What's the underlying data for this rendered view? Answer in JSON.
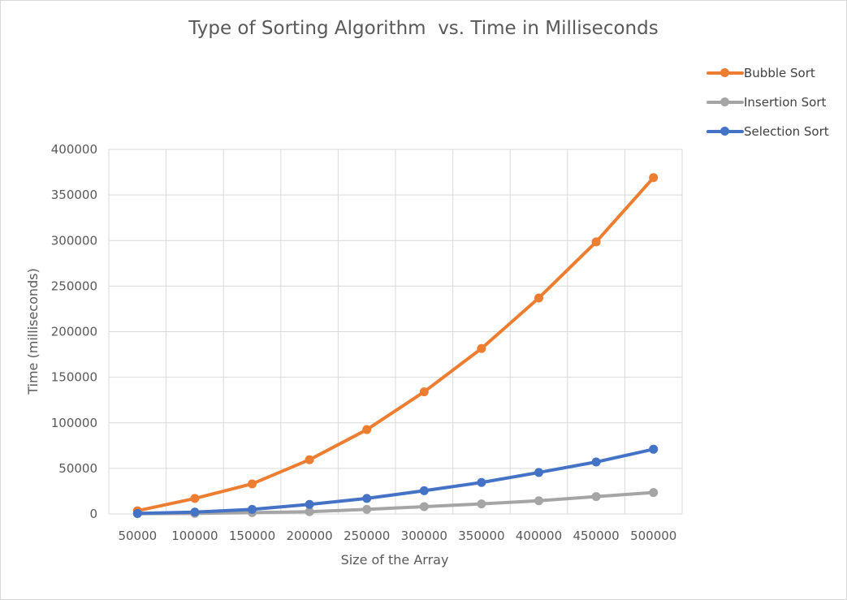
{
  "chart_data": {
    "type": "line",
    "title": "Type of Sorting Algorithm  vs. Time in Milliseconds",
    "xlabel": "Size of the  Array",
    "ylabel": "Time (milliseconds)",
    "categories": [
      "50000",
      "100000",
      "150000",
      "200000",
      "250000",
      "300000",
      "350000",
      "400000",
      "450000",
      "500000"
    ],
    "ylim": [
      0,
      400000
    ],
    "yticks": [
      "0",
      "50000",
      "100000",
      "150000",
      "200000",
      "250000",
      "300000",
      "350000",
      "400000"
    ],
    "grid": true,
    "legend_position": "top-right",
    "series": [
      {
        "name": "Bubble Sort",
        "color": "#ed7d31",
        "values": [
          3500,
          17000,
          33000,
          59500,
          92500,
          134000,
          181500,
          237000,
          298500,
          369000
        ]
      },
      {
        "name": "Insertion Sort",
        "color": "#a5a5a5",
        "values": [
          300,
          600,
          1500,
          2500,
          5000,
          8000,
          11000,
          14500,
          19000,
          23500
        ]
      },
      {
        "name": "Selection Sort",
        "color": "#4472c4",
        "values": [
          600,
          2000,
          5000,
          10500,
          17000,
          25500,
          34500,
          45500,
          57000,
          71000
        ]
      }
    ]
  }
}
